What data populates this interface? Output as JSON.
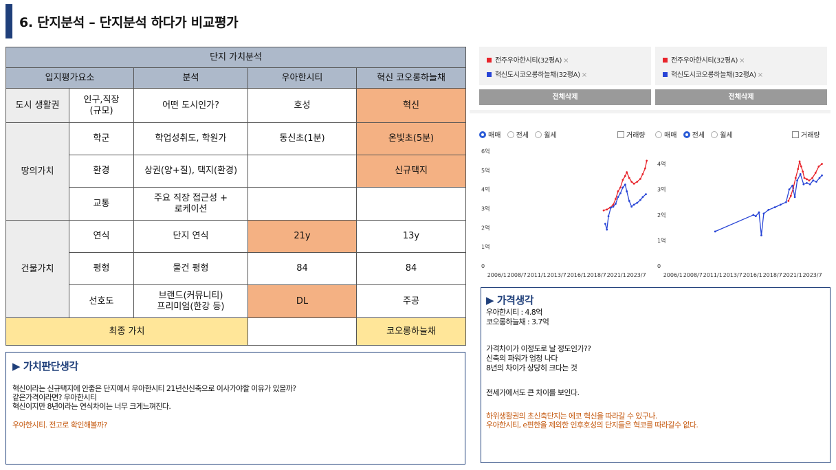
{
  "page": {
    "title": "6. 단지분석 – 단지분석 하다가 비교평가"
  },
  "table": {
    "title": "단지 가치분석",
    "columns": [
      "입지평가요소",
      "분석",
      "우아한시티",
      "혁신 코오롱하늘채"
    ],
    "city_life": {
      "section": "도시 생활권",
      "factor": "인구,직장\n(규모)",
      "analysis": "어떤 도시인가?",
      "a": "호성",
      "b": "혁신"
    },
    "land_value": {
      "section": "땅의가치",
      "rows": [
        {
          "factor": "학군",
          "analysis": "학업성취도, 학원가",
          "a": "동신초(1분)",
          "b": "온빛초(5분)"
        },
        {
          "factor": "환경",
          "analysis": "상권(양+질), 택지(환경)",
          "a": "",
          "b": "신규택지"
        },
        {
          "factor": "교통",
          "analysis": "주요 직장 접근성 +\n로케이션",
          "a": "",
          "b": ""
        }
      ]
    },
    "building_value": {
      "section": "건물가치",
      "rows": [
        {
          "factor": "연식",
          "analysis": "단지 연식",
          "a": "21y",
          "b": "13y"
        },
        {
          "factor": "평형",
          "analysis": "물건 평형",
          "a": "84",
          "b": "84"
        },
        {
          "factor": "선호도",
          "analysis": "브랜드(커뮤니티)\n프리미엄(한강 등)",
          "a": "DL",
          "b": "주공"
        }
      ]
    },
    "final": {
      "label": "최종 가치",
      "a": "",
      "b": "코오롱하늘채"
    }
  },
  "value_box": {
    "heading": "▶ 가치판단생각",
    "lines": [
      "혁신이라는 신규택지에 안좋은 단지에서 우아한시티 21년신신축으로 이사가야할 이유가 있을까?",
      "같은가격이라면? 우아한시티",
      "혁신이지만 8년이라는 연식차이는 너무 크게느껴진다."
    ],
    "highlight": "우아한시티. 전고로 확인해볼까?"
  },
  "comparison": {
    "filters": [
      {
        "name": "전주우아한시티(32평A)",
        "color": "#e8242b"
      },
      {
        "name": "혁신도시코오롱하늘채(32평A)",
        "color": "#2845d6"
      }
    ],
    "remove_mark": "×",
    "delete_all": "전체삭제",
    "trade_types": [
      "매매",
      "전세",
      "월세"
    ],
    "volume_label": "거래량"
  },
  "chart_data": [
    {
      "type": "line",
      "selected": "매매",
      "x_ticks": [
        "2006/1",
        "2008/7",
        "2011/1",
        "2013/7",
        "2016/1",
        "2018/7",
        "2021/1",
        "2023/7"
      ],
      "y_ticks": [
        "0",
        "1억",
        "2억",
        "3억",
        "4억",
        "5억",
        "6억"
      ],
      "ylim": [
        0,
        6
      ],
      "unit": "억",
      "series": [
        {
          "color": "#e8242b",
          "points": [
            [
              2019.4,
              2.9
            ],
            [
              2019.8,
              2.95
            ],
            [
              2020.2,
              3.05
            ],
            [
              2020.6,
              3.2
            ],
            [
              2020.9,
              3.5
            ],
            [
              2021.2,
              3.9
            ],
            [
              2021.5,
              4.1
            ],
            [
              2021.8,
              4.5
            ],
            [
              2022.1,
              4.7
            ],
            [
              2022.3,
              4.9
            ],
            [
              2022.6,
              4.6
            ],
            [
              2022.9,
              4.4
            ],
            [
              2023.2,
              4.3
            ],
            [
              2023.6,
              4.4
            ],
            [
              2024.0,
              4.55
            ],
            [
              2024.3,
              4.8
            ],
            [
              2024.6,
              5.1
            ],
            [
              2024.8,
              5.5
            ]
          ]
        },
        {
          "color": "#2845d6",
          "points": [
            [
              2019.6,
              2.2
            ],
            [
              2019.8,
              1.9
            ],
            [
              2020.0,
              2.6
            ],
            [
              2020.3,
              3.05
            ],
            [
              2020.6,
              3.1
            ],
            [
              2020.9,
              3.25
            ],
            [
              2021.2,
              3.6
            ],
            [
              2021.5,
              3.8
            ],
            [
              2021.8,
              4.1
            ],
            [
              2022.1,
              4.25
            ],
            [
              2022.3,
              3.9
            ],
            [
              2022.6,
              3.4
            ],
            [
              2022.9,
              3.1
            ],
            [
              2023.2,
              3.2
            ],
            [
              2023.6,
              3.3
            ],
            [
              2024.0,
              3.45
            ],
            [
              2024.3,
              3.6
            ],
            [
              2024.7,
              3.75
            ]
          ]
        }
      ]
    },
    {
      "type": "line",
      "selected": "전세",
      "x_ticks": [
        "2006/1",
        "2008/7",
        "2011/1",
        "2013/7",
        "2016/1",
        "2018/7",
        "2021/1",
        "2023/7"
      ],
      "y_ticks": [
        "0",
        "1억",
        "2억",
        "3억",
        "4억"
      ],
      "ylim": [
        0,
        4.5
      ],
      "unit": "억",
      "series": [
        {
          "color": "#e8242b",
          "points": [
            [
              2020.5,
              2.55
            ],
            [
              2020.8,
              2.75
            ],
            [
              2021.1,
              3.05
            ],
            [
              2021.4,
              3.45
            ],
            [
              2021.7,
              3.8
            ],
            [
              2021.9,
              4.1
            ],
            [
              2022.1,
              3.9
            ],
            [
              2022.3,
              3.7
            ],
            [
              2022.5,
              3.45
            ],
            [
              2022.8,
              3.4
            ],
            [
              2023.1,
              3.35
            ],
            [
              2023.5,
              3.45
            ],
            [
              2023.9,
              3.65
            ],
            [
              2024.3,
              3.9
            ],
            [
              2024.7,
              4.0
            ]
          ]
        },
        {
          "color": "#2845d6",
          "points": [
            [
              2011.3,
              1.35
            ],
            [
              2016.1,
              2.0
            ],
            [
              2016.4,
              1.95
            ],
            [
              2016.8,
              2.1
            ],
            [
              2017.1,
              1.2
            ],
            [
              2017.4,
              2.05
            ],
            [
              2018.0,
              2.2
            ],
            [
              2018.8,
              2.3
            ],
            [
              2019.5,
              2.4
            ],
            [
              2020.2,
              2.5
            ],
            [
              2020.6,
              3.0
            ],
            [
              2021.0,
              3.15
            ],
            [
              2021.3,
              2.7
            ],
            [
              2021.6,
              3.35
            ],
            [
              2022.0,
              3.6
            ],
            [
              2022.4,
              3.2
            ],
            [
              2022.8,
              3.25
            ],
            [
              2023.2,
              3.2
            ],
            [
              2023.6,
              3.35
            ],
            [
              2024.0,
              3.3
            ],
            [
              2024.4,
              3.45
            ],
            [
              2024.7,
              3.55
            ]
          ]
        }
      ]
    }
  ],
  "price_box": {
    "heading": "▶ 가격생각",
    "lines_a": [
      "우아한시티 : 4.8억",
      "코오롱하늘채 : 3.7억"
    ],
    "lines_b": [
      "가격차이가 이정도로 날 정도인가??",
      "신축의 파워가 엄청 나다",
      "8년의 차이가 상당히 크다는 것"
    ],
    "line_c": "전세가에서도 큰 차이를 보인다.",
    "highlight": [
      "하위생활권의 초신축단지는 에코 혁신을 따라갈 수 있구나.",
      "우아한시티, e편한을 제외한 인후호성의 단지들은 혁코를 따라갈수 없다."
    ]
  }
}
